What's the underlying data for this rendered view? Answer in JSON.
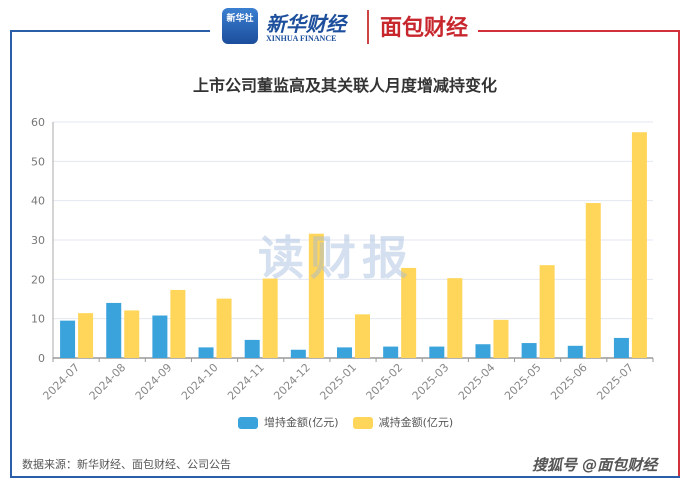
{
  "header": {
    "logo_xinhua": "新华社",
    "logo_xinhua_finance": "新华财经",
    "logo_xinhua_finance_en": "XINHUA FINANCE",
    "logo_mianbao": "面包财经"
  },
  "watermark": "读财报",
  "source": "数据来源：新华财经、面包财经、公司公告",
  "credit": "搜狐号 @面包财经",
  "colors": {
    "increase": "#3aa3dc",
    "decrease": "#ffd55a"
  },
  "chart_data": {
    "type": "bar",
    "title": "上市公司董监高及其关联人月度增减持变化",
    "categories": [
      "2024-07",
      "2024-08",
      "2024-09",
      "2024-10",
      "2024-11",
      "2024-12",
      "2025-01",
      "2025-02",
      "2025-03",
      "2025-04",
      "2025-05",
      "2025-06",
      "2025-07"
    ],
    "series": [
      {
        "name": "增持金额(亿元)",
        "values": [
          9.5,
          14.0,
          10.8,
          2.7,
          4.6,
          2.1,
          2.7,
          2.9,
          2.9,
          3.5,
          3.8,
          3.1,
          5.1
        ]
      },
      {
        "name": "减持金额(亿元)",
        "values": [
          11.4,
          12.1,
          17.3,
          15.1,
          20.2,
          31.6,
          11.1,
          22.9,
          20.3,
          9.7,
          23.6,
          39.4,
          57.4
        ]
      }
    ],
    "ylim": [
      0,
      60
    ],
    "yticks": [
      0,
      10,
      20,
      30,
      40,
      50,
      60
    ],
    "xlabel": "",
    "ylabel": "",
    "grid": true,
    "legend": "bottom"
  }
}
